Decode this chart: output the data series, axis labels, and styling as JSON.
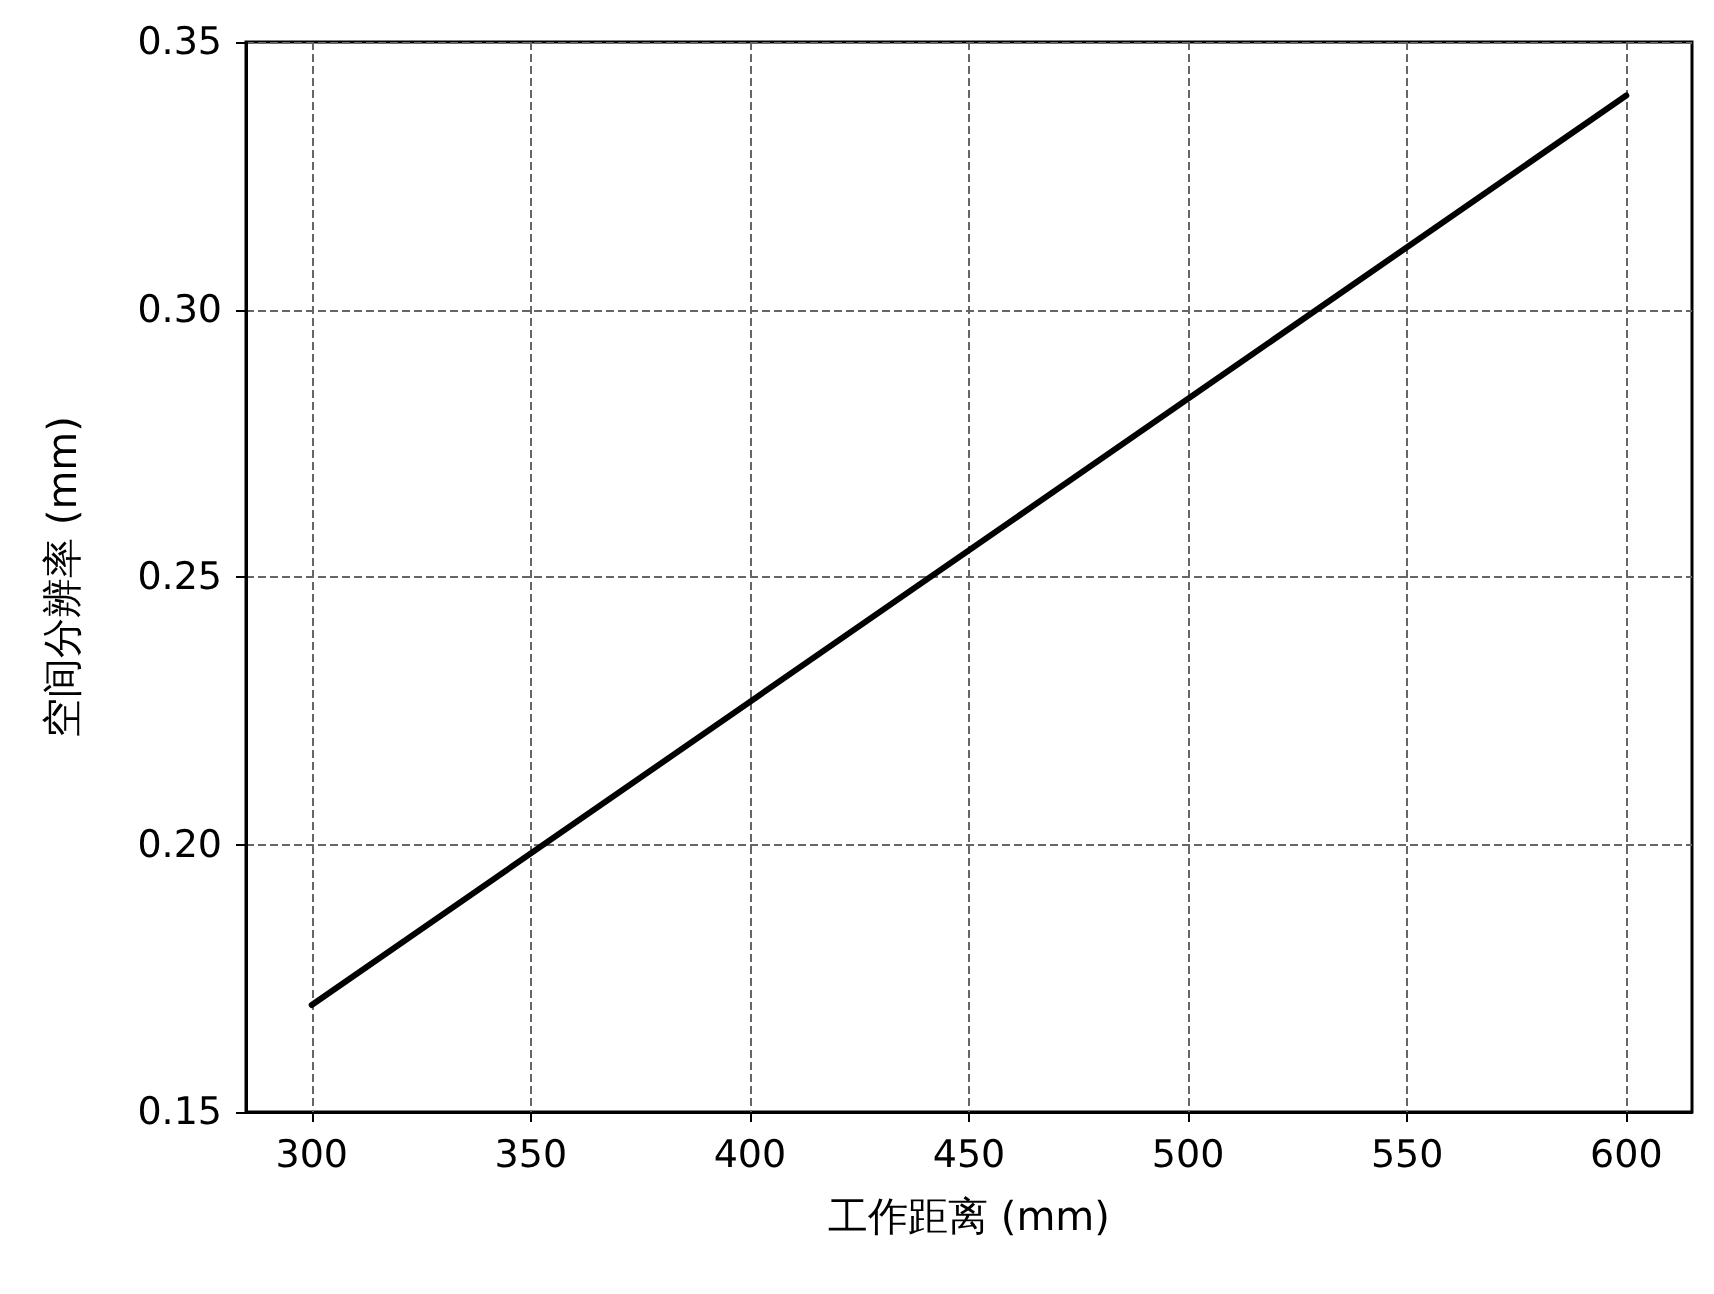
{
  "chart_data": {
    "type": "line",
    "xlabel": "工作距离 (mm)",
    "ylabel": "空间分辨率 (mm)",
    "series": [
      {
        "color": "#000000",
        "x": [
          300,
          600
        ],
        "values": [
          0.17,
          0.34
        ]
      }
    ],
    "xlim": [
      285,
      615
    ],
    "xticks": [
      300,
      350,
      400,
      450,
      500,
      550,
      600
    ],
    "ylim": [
      0.15,
      0.35
    ],
    "yticks": [
      {
        "value": 0.15,
        "label": "0.15"
      },
      {
        "value": 0.2,
        "label": "0.20"
      },
      {
        "value": 0.25,
        "label": "0.25"
      },
      {
        "value": 0.3,
        "label": "0.30"
      },
      {
        "value": 0.35,
        "label": "0.35"
      }
    ],
    "grid": true,
    "marker": "none",
    "line_style": "solid"
  }
}
